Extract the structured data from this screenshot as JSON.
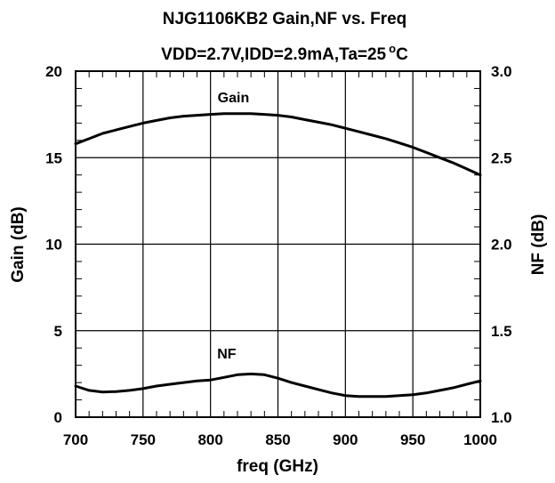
{
  "chart_data": {
    "type": "line",
    "title": "NJG1106KB2 Gain,NF vs. Freq",
    "subtitle_text": "VDD=2.7V,IDD=2.9mA,Ta=25",
    "subtitle_degree": "o",
    "subtitle_unit": "C",
    "xlabel": "freq (GHz)",
    "ylabel_left": "Gain (dB)",
    "ylabel_right": "NF (dB)",
    "xlim": [
      700,
      1000
    ],
    "ylim_left": [
      0,
      20
    ],
    "ylim_right": [
      1.0,
      3.0
    ],
    "x_ticks": [
      "700",
      "750",
      "800",
      "850",
      "900",
      "950",
      "1000"
    ],
    "y_left_ticks": [
      "0",
      "5",
      "10",
      "15",
      "20"
    ],
    "y_right_ticks": [
      "1.0",
      "1.5",
      "2.0",
      "2.5",
      "3.0"
    ],
    "grid": true,
    "series": [
      {
        "name": "Gain",
        "axis": "left",
        "color": "#000000",
        "x": [
          700,
          710,
          720,
          730,
          740,
          750,
          760,
          770,
          780,
          790,
          800,
          810,
          820,
          830,
          840,
          850,
          860,
          870,
          880,
          890,
          900,
          910,
          920,
          930,
          940,
          950,
          960,
          970,
          980,
          990,
          1000
        ],
        "y": [
          15.8,
          16.1,
          16.4,
          16.6,
          16.8,
          17.0,
          17.15,
          17.3,
          17.4,
          17.45,
          17.5,
          17.55,
          17.55,
          17.55,
          17.5,
          17.45,
          17.35,
          17.2,
          17.05,
          16.9,
          16.7,
          16.5,
          16.3,
          16.1,
          15.85,
          15.6,
          15.3,
          15.0,
          14.7,
          14.35,
          14.0
        ]
      },
      {
        "name": "NF",
        "axis": "right",
        "color": "#000000",
        "x": [
          700,
          710,
          720,
          730,
          740,
          750,
          760,
          770,
          780,
          790,
          800,
          810,
          820,
          830,
          840,
          850,
          860,
          870,
          880,
          890,
          900,
          910,
          920,
          930,
          940,
          950,
          960,
          970,
          980,
          990,
          1000
        ],
        "y": [
          1.18,
          1.155,
          1.145,
          1.148,
          1.155,
          1.165,
          1.18,
          1.19,
          1.2,
          1.21,
          1.215,
          1.23,
          1.245,
          1.25,
          1.245,
          1.225,
          1.2,
          1.18,
          1.16,
          1.14,
          1.125,
          1.12,
          1.12,
          1.12,
          1.125,
          1.13,
          1.14,
          1.155,
          1.17,
          1.19,
          1.21
        ]
      }
    ],
    "annotations": [
      {
        "text": "Gain",
        "x": 817,
        "y_axis": "left",
        "y": 18.2
      },
      {
        "text": "NF",
        "x": 812,
        "y_axis": "left",
        "y": 3.4
      }
    ]
  }
}
